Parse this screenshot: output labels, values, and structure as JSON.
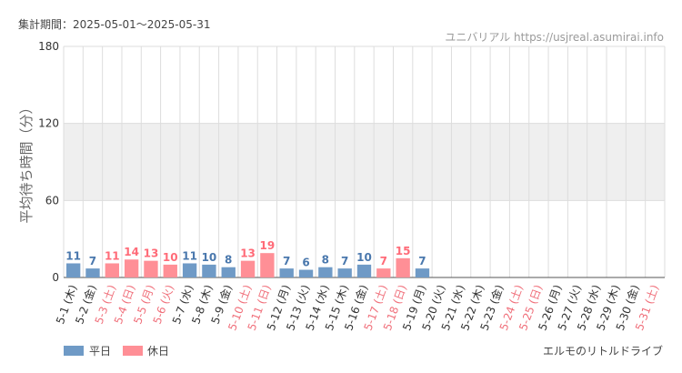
{
  "header": {
    "period": "集計期間：2025-05-01～2025-05-31",
    "site": "ユニバリアル https://usjreal.asumirai.info"
  },
  "footer": {
    "attraction": "エルモのリトルドライブ"
  },
  "colors": {
    "weekday": "#6f9ac6",
    "holiday": "#ff8f96",
    "weekday_label": "#4a78ad",
    "holiday_label": "#ff6b78",
    "weekday_tick": "#333333",
    "holiday_tick": "#f06f7a",
    "band": "#efefef",
    "grid": "#dddddd"
  },
  "chart_data": {
    "type": "bar",
    "ylabel": "平均待ち時間（分）",
    "ylim": [
      0,
      180
    ],
    "yticks": [
      0,
      60,
      120,
      180
    ],
    "shaded_band": [
      60,
      120
    ],
    "grid": true,
    "legend_position": "bottom-left",
    "series": [
      {
        "name": "平日",
        "key": "weekday"
      },
      {
        "name": "休日",
        "key": "holiday"
      }
    ],
    "categories": [
      "5-1 (木)",
      "5-2 (金)",
      "5-3 (土)",
      "5-4 (日)",
      "5-5 (月)",
      "5-6 (火)",
      "5-7 (水)",
      "5-8 (木)",
      "5-9 (金)",
      "5-10 (土)",
      "5-11 (日)",
      "5-12 (月)",
      "5-13 (火)",
      "5-14 (水)",
      "5-15 (木)",
      "5-16 (金)",
      "5-17 (土)",
      "5-18 (日)",
      "5-19 (月)",
      "5-20 (火)",
      "5-21 (水)",
      "5-22 (木)",
      "5-23 (金)",
      "5-24 (土)",
      "5-25 (日)",
      "5-26 (月)",
      "5-27 (火)",
      "5-28 (水)",
      "5-29 (木)",
      "5-30 (金)",
      "5-31 (土)"
    ],
    "day_type": [
      "weekday",
      "weekday",
      "holiday",
      "holiday",
      "holiday",
      "holiday",
      "weekday",
      "weekday",
      "weekday",
      "holiday",
      "holiday",
      "weekday",
      "weekday",
      "weekday",
      "weekday",
      "weekday",
      "holiday",
      "holiday",
      "weekday",
      "weekday",
      "weekday",
      "weekday",
      "weekday",
      "holiday",
      "holiday",
      "weekday",
      "weekday",
      "weekday",
      "weekday",
      "weekday",
      "holiday"
    ],
    "values": [
      11,
      7,
      11,
      14,
      13,
      10,
      11,
      10,
      8,
      13,
      19,
      7,
      6,
      8,
      7,
      10,
      7,
      15,
      7,
      null,
      null,
      null,
      null,
      null,
      null,
      null,
      null,
      null,
      null,
      null,
      null
    ]
  }
}
